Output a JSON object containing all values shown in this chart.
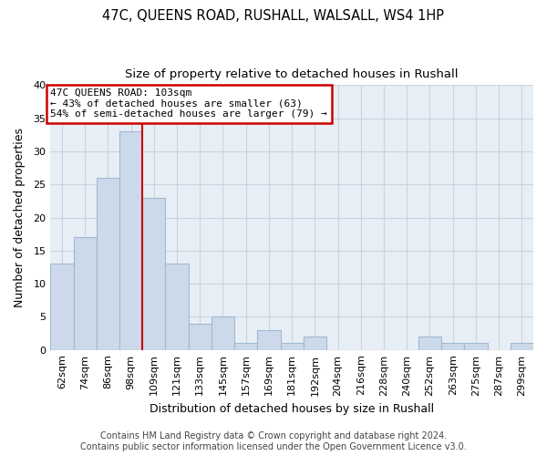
{
  "title": "47C, QUEENS ROAD, RUSHALL, WALSALL, WS4 1HP",
  "subtitle": "Size of property relative to detached houses in Rushall",
  "xlabel": "Distribution of detached houses by size in Rushall",
  "ylabel": "Number of detached properties",
  "bar_labels": [
    "62sqm",
    "74sqm",
    "86sqm",
    "98sqm",
    "109sqm",
    "121sqm",
    "133sqm",
    "145sqm",
    "157sqm",
    "169sqm",
    "181sqm",
    "192sqm",
    "204sqm",
    "216sqm",
    "228sqm",
    "240sqm",
    "252sqm",
    "263sqm",
    "275sqm",
    "287sqm",
    "299sqm"
  ],
  "bar_values": [
    13,
    17,
    26,
    33,
    23,
    13,
    4,
    5,
    1,
    3,
    1,
    2,
    0,
    0,
    0,
    0,
    2,
    1,
    1,
    0,
    1
  ],
  "bar_color": "#ccd9ea",
  "bar_edge_color": "#a0b8d4",
  "vline_x": 3.5,
  "vline_color": "#cc0000",
  "annotation_text": "47C QUEENS ROAD: 103sqm\n← 43% of detached houses are smaller (63)\n54% of semi-detached houses are larger (79) →",
  "annotation_box_color": "#ffffff",
  "annotation_box_edge_color": "#cc0000",
  "ylim": [
    0,
    40
  ],
  "yticks": [
    0,
    5,
    10,
    15,
    20,
    25,
    30,
    35,
    40
  ],
  "footer_text": "Contains HM Land Registry data © Crown copyright and database right 2024.\nContains public sector information licensed under the Open Government Licence v3.0.",
  "bg_color": "#ffffff",
  "plot_bg_color": "#e8eef5",
  "grid_color": "#c8d4e0",
  "title_fontsize": 10.5,
  "subtitle_fontsize": 9.5,
  "axis_label_fontsize": 9,
  "tick_fontsize": 8,
  "annotation_fontsize": 8,
  "footer_fontsize": 7
}
